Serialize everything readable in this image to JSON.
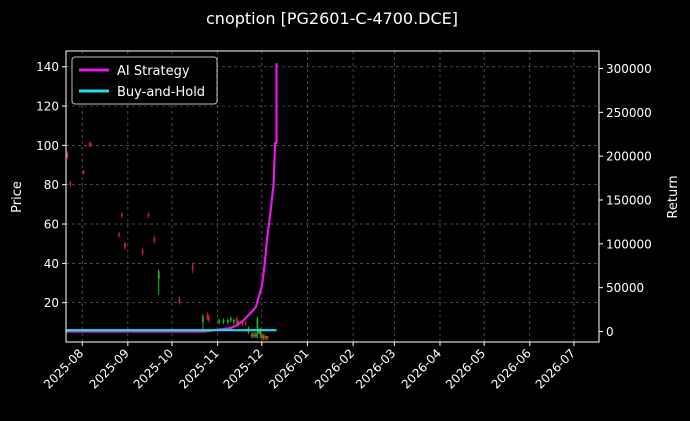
{
  "chart_data": {
    "type": "line",
    "title": "cnoption [PG2601-C-4700.DCE]",
    "ylabel_left": "Price",
    "ylabel_right": "Return",
    "x_ticks": [
      "2025-08",
      "2025-09",
      "2025-10",
      "2025-11",
      "2025-12",
      "2026-01",
      "2026-02",
      "2026-03",
      "2026-04",
      "2026-05",
      "2026-06",
      "2026-07"
    ],
    "xlim": [
      "2025-07-21",
      "2026-07-18"
    ],
    "ylim_left": [
      0,
      148
    ],
    "yticks_left": [
      20,
      40,
      60,
      80,
      100,
      120,
      140
    ],
    "ylim_right": [
      -12000,
      320000
    ],
    "yticks_right": [
      0,
      50000,
      100000,
      150000,
      200000,
      250000,
      300000
    ],
    "grid": true,
    "legend_position": "top-left",
    "colors": {
      "background": "#000000",
      "ai_strategy": "#e619e6",
      "buy_and_hold": "#22dde6",
      "candle_up": "#1db31d",
      "candle_down": "#d11a2a",
      "grid": "#666666"
    },
    "series": [
      {
        "name": "AI Strategy",
        "axis": "right",
        "x": [
          "2025-07-21",
          "2025-10-23",
          "2025-11-01",
          "2025-11-10",
          "2025-11-14",
          "2025-11-18",
          "2025-11-21",
          "2025-11-24",
          "2025-11-27",
          "2025-11-29",
          "2025-12-01",
          "2025-12-02",
          "2025-12-03",
          "2025-12-04",
          "2025-12-05",
          "2025-12-06",
          "2025-12-07",
          "2025-12-08",
          "2025-12-09",
          "2025-12-10",
          "2025-12-11",
          "2025-12-11",
          "2025-12-11"
        ],
        "values": [
          0,
          0,
          2000,
          4000,
          7000,
          12000,
          17000,
          22000,
          28000,
          40000,
          52000,
          64000,
          78000,
          95000,
          112000,
          125000,
          138000,
          153000,
          168000,
          215000,
          215000,
          230000,
          306000
        ]
      },
      {
        "name": "Buy-and-Hold",
        "axis": "right",
        "x": [
          "2025-07-21",
          "2025-12-11"
        ],
        "values": [
          1500,
          1500
        ]
      }
    ],
    "candles": [
      {
        "date": "2025-07-22",
        "open": 96,
        "close": 94,
        "high": 97,
        "low": 93
      },
      {
        "date": "2025-07-24",
        "open": 81,
        "close": 80,
        "high": 82,
        "low": 79
      },
      {
        "date": "2025-08-02",
        "open": 87,
        "close": 86,
        "high": 87.5,
        "low": 85
      },
      {
        "date": "2025-08-06",
        "open": 101,
        "close": 100,
        "high": 102,
        "low": 99
      },
      {
        "date": "2025-08-07",
        "open": 101,
        "close": 100,
        "high": 101.5,
        "low": 99.5
      },
      {
        "date": "2025-08-26",
        "open": 55,
        "close": 54,
        "high": 56,
        "low": 53
      },
      {
        "date": "2025-08-28",
        "open": 65,
        "close": 64,
        "high": 66,
        "low": 63
      },
      {
        "date": "2025-08-30",
        "open": 50,
        "close": 48,
        "high": 51,
        "low": 47
      },
      {
        "date": "2025-09-11",
        "open": 47,
        "close": 45,
        "high": 48,
        "low": 44
      },
      {
        "date": "2025-09-15",
        "open": 65,
        "close": 64,
        "high": 66,
        "low": 63
      },
      {
        "date": "2025-09-19",
        "open": 53,
        "close": 51,
        "high": 54,
        "low": 50
      },
      {
        "date": "2025-09-22",
        "open": 32,
        "close": 36,
        "high": 37,
        "low": 24
      },
      {
        "date": "2025-10-06",
        "open": 22,
        "close": 20,
        "high": 23,
        "low": 19
      },
      {
        "date": "2025-10-15",
        "open": 39,
        "close": 37,
        "high": 40,
        "low": 35
      },
      {
        "date": "2025-10-22",
        "open": 10,
        "close": 13,
        "high": 14,
        "low": 6
      },
      {
        "date": "2025-10-25",
        "open": 14,
        "close": 12,
        "high": 15,
        "low": 11
      },
      {
        "date": "2025-10-26",
        "open": 13,
        "close": 11,
        "high": 14,
        "low": 10
      },
      {
        "date": "2025-11-02",
        "open": 10,
        "close": 11,
        "high": 12,
        "low": 9
      },
      {
        "date": "2025-11-05",
        "open": 10,
        "close": 11,
        "high": 12,
        "low": 9
      },
      {
        "date": "2025-11-08",
        "open": 10,
        "close": 11,
        "high": 12,
        "low": 9
      },
      {
        "date": "2025-11-10",
        "open": 11,
        "close": 12,
        "high": 13,
        "low": 10
      },
      {
        "date": "2025-11-12",
        "open": 10,
        "close": 11,
        "high": 12,
        "low": 9
      },
      {
        "date": "2025-11-14",
        "open": 12,
        "close": 9,
        "high": 13,
        "low": 8
      },
      {
        "date": "2025-11-15",
        "open": 9,
        "close": 10,
        "high": 11,
        "low": 8
      },
      {
        "date": "2025-11-18",
        "open": 10,
        "close": 9,
        "high": 11,
        "low": 8
      },
      {
        "date": "2025-11-20",
        "open": 10,
        "close": 9,
        "high": 11,
        "low": 8
      },
      {
        "date": "2025-11-22",
        "open": 5,
        "close": 7,
        "high": 8,
        "low": 4
      },
      {
        "date": "2025-11-24",
        "open": 4,
        "close": 3,
        "high": 5,
        "low": 2
      },
      {
        "date": "2025-11-25",
        "open": 3,
        "close": 4,
        "high": 5,
        "low": 2
      },
      {
        "date": "2025-11-26",
        "open": 4,
        "close": 3,
        "high": 5,
        "low": 2
      },
      {
        "date": "2025-11-27",
        "open": 3,
        "close": 4,
        "high": 5,
        "low": 2
      },
      {
        "date": "2025-11-28",
        "open": 7,
        "close": 12,
        "high": 13,
        "low": 2
      },
      {
        "date": "2025-11-29",
        "open": 5,
        "close": 6,
        "high": 7,
        "low": 4
      },
      {
        "date": "2025-11-30",
        "open": 4,
        "close": 6,
        "high": 7,
        "low": 2
      },
      {
        "date": "2025-12-01",
        "open": 4,
        "close": 2,
        "high": 5,
        "low": 1
      },
      {
        "date": "2025-12-02",
        "open": 2,
        "close": 3,
        "high": 4,
        "low": 1
      },
      {
        "date": "2025-12-03",
        "open": 3,
        "close": 2,
        "high": 4,
        "low": 1
      },
      {
        "date": "2025-12-04",
        "open": 2,
        "close": 3,
        "high": 3,
        "low": 1
      },
      {
        "date": "2025-12-05",
        "open": 3,
        "close": 2,
        "high": 3,
        "low": 1
      }
    ]
  }
}
